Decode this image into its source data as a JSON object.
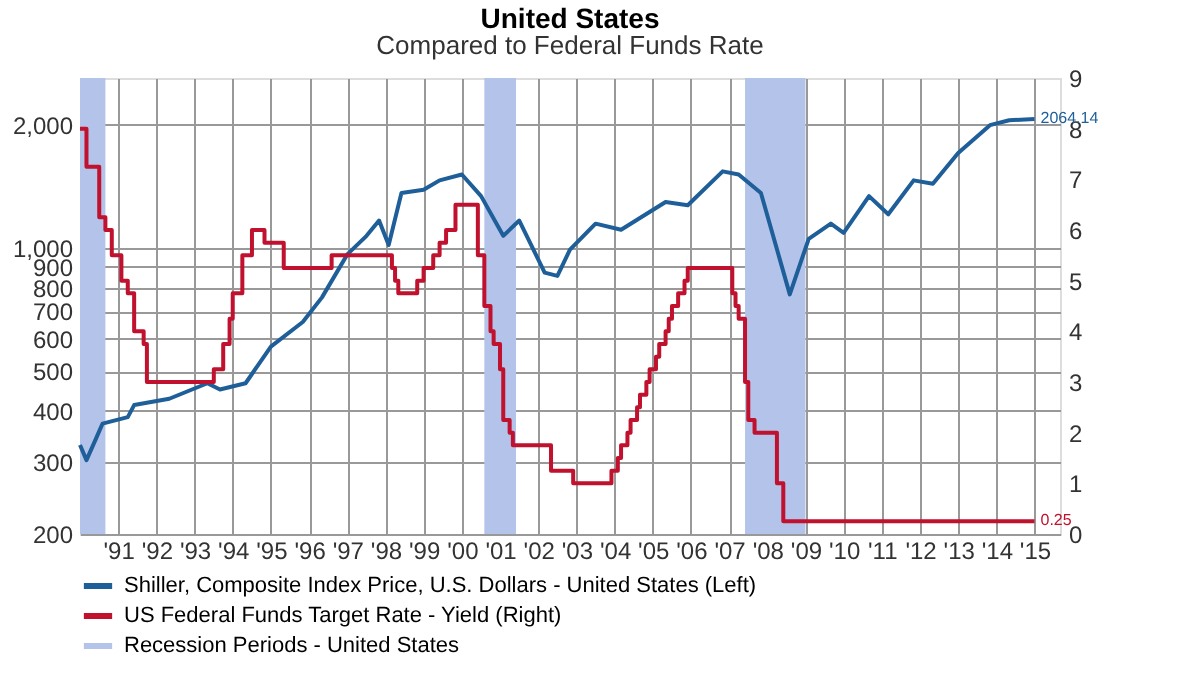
{
  "chart_data": {
    "type": "line",
    "title": "United States",
    "subtitle": "Compared to Federal Funds Rate",
    "xlim": [
      "1990-07",
      "2016-03"
    ],
    "xticks": [
      {
        "value": "1991-07",
        "label": "'91"
      },
      {
        "value": "1992-07",
        "label": "'92"
      },
      {
        "value": "1993-07",
        "label": "'93"
      },
      {
        "value": "1994-07",
        "label": "'94"
      },
      {
        "value": "1995-07",
        "label": "'95"
      },
      {
        "value": "1996-07",
        "label": "'96"
      },
      {
        "value": "1997-07",
        "label": "'97"
      },
      {
        "value": "1998-07",
        "label": "'98"
      },
      {
        "value": "1999-07",
        "label": "'99"
      },
      {
        "value": "2000-07",
        "label": "'00"
      },
      {
        "value": "2001-07",
        "label": "'01"
      },
      {
        "value": "2002-07",
        "label": "'02"
      },
      {
        "value": "2003-07",
        "label": "'03"
      },
      {
        "value": "2004-07",
        "label": "'04"
      },
      {
        "value": "2005-07",
        "label": "'05"
      },
      {
        "value": "2006-07",
        "label": "'06"
      },
      {
        "value": "2007-07",
        "label": "'07"
      },
      {
        "value": "2008-07",
        "label": "'08"
      },
      {
        "value": "2009-07",
        "label": "'09"
      },
      {
        "value": "2010-07",
        "label": "'10"
      },
      {
        "value": "2011-07",
        "label": "'11"
      },
      {
        "value": "2012-07",
        "label": "'12"
      },
      {
        "value": "2013-07",
        "label": "'13"
      },
      {
        "value": "2014-07",
        "label": "'14"
      },
      {
        "value": "2015-07",
        "label": "'15"
      }
    ],
    "ylim": [
      200,
      2600
    ],
    "yticks": [
      200,
      300,
      400,
      500,
      600,
      700,
      800,
      900,
      {
        "value": 1000,
        "label": "1,000"
      },
      {
        "value": 2000,
        "label": "2,000"
      }
    ],
    "y2lim": [
      0,
      9
    ],
    "y2ticks": [
      0,
      1,
      2,
      3,
      4,
      5,
      6,
      7,
      8,
      9
    ],
    "log": "y",
    "grid": true,
    "legend": "bottom",
    "series": [
      {
        "name": "Shiller, Composite Index Price, U.S. Dollars - United States  (Left)",
        "color": "#1f5f99",
        "x": [
          "1990-07",
          "1990-09",
          "1990-12",
          "1991-02",
          "1991-10",
          "1991-12",
          "1992-11",
          "1993-11",
          "1994-03",
          "1994-11",
          "1995-07",
          "1996-05",
          "1996-11",
          "1997-07",
          "1998-01",
          "1998-05",
          "1998-08",
          "1998-12",
          "1999-07",
          "1999-12",
          "2000-07",
          "2001-01",
          "2001-08",
          "2002-01",
          "2002-09",
          "2003-01",
          "2003-05",
          "2004-01",
          "2004-09",
          "2005-11",
          "2006-06",
          "2007-05",
          "2007-10",
          "2008-05",
          "2008-11",
          "2009-02",
          "2009-08",
          "2010-03",
          "2010-07",
          "2011-03",
          "2011-09",
          "2012-05",
          "2012-11",
          "2013-07",
          "2014-05",
          "2014-11",
          "2015-07"
        ],
        "values": [
          330,
          303,
          342,
          372,
          386,
          413,
          428,
          467,
          451,
          467,
          574,
          659,
          757,
          964,
          1070,
          1166,
          1016,
          1362,
          1386,
          1462,
          1511,
          1338,
          1070,
          1166,
          870,
          854,
          990,
          1146,
          1107,
          1294,
          1271,
          1538,
          1511,
          1362,
          931,
          770,
          1052,
          1146,
          1088,
          1338,
          1208,
          1462,
          1435,
          1706,
          1994,
          2050,
          2064.14
        ],
        "value_labels": [
          null,
          null,
          null,
          null,
          null,
          null,
          null,
          null,
          null,
          null,
          null,
          null,
          null,
          null,
          null,
          null,
          null,
          null,
          null,
          null,
          null,
          null,
          null,
          null,
          null,
          null,
          null,
          null,
          null,
          null,
          null,
          null,
          null,
          null,
          null,
          null,
          null,
          null,
          null,
          null,
          null,
          null,
          null,
          null,
          null,
          null,
          "2064.14"
        ]
      },
      {
        "name": "US Federal Funds Target Rate - Yield  (Right)",
        "color": "#c0112e",
        "type": "step",
        "axis": "y2",
        "x": [
          "1990-07",
          "1990-09",
          "1991-01",
          "1991-03",
          "1991-05",
          "1991-08",
          "1991-10",
          "1991-12",
          "1992-03",
          "1992-04",
          "1994-01",
          "1994-04",
          "1994-06",
          "1994-07",
          "1994-10",
          "1995-01",
          "1995-05",
          "1995-11",
          "1997-02",
          "1998-09",
          "1998-10",
          "1998-11",
          "1999-05",
          "1999-07",
          "1999-10",
          "1999-12",
          "2000-02",
          "2000-05",
          "2000-12",
          "2001-02",
          "2001-04",
          "2001-05",
          "2001-07",
          "2001-08",
          "2001-10",
          "2001-11",
          "2002-11",
          "2003-06",
          "2004-06",
          "2004-08",
          "2004-09",
          "2004-11",
          "2004-12",
          "2005-02",
          "2005-03",
          "2005-05",
          "2005-06",
          "2005-08",
          "2005-09",
          "2005-11",
          "2005-12",
          "2006-01",
          "2006-03",
          "2006-05",
          "2006-06",
          "2007-08",
          "2007-09",
          "2007-10",
          "2007-12",
          "2008-01",
          "2008-03",
          "2008-10",
          "2008-12",
          "2015-07"
        ],
        "values": [
          8.0,
          7.25,
          6.25,
          6.0,
          5.5,
          5.0,
          4.75,
          4.0,
          3.75,
          3.0,
          3.25,
          3.75,
          4.25,
          4.75,
          5.5,
          6.0,
          5.75,
          5.25,
          5.5,
          5.25,
          5.0,
          4.75,
          5.0,
          5.25,
          5.5,
          5.75,
          6.0,
          6.5,
          5.5,
          4.5,
          4.0,
          3.75,
          3.25,
          2.25,
          2.0,
          1.75,
          1.25,
          1.0,
          1.25,
          1.5,
          1.75,
          2.0,
          2.25,
          2.5,
          2.75,
          3.0,
          3.25,
          3.5,
          3.75,
          4.0,
          4.25,
          4.5,
          4.75,
          5.0,
          5.25,
          4.75,
          4.5,
          4.25,
          3.0,
          2.25,
          2.0,
          1.0,
          0.25,
          0.25
        ],
        "value_labels": [
          null,
          null,
          null,
          null,
          null,
          null,
          null,
          null,
          null,
          null,
          null,
          null,
          null,
          null,
          null,
          null,
          null,
          null,
          null,
          null,
          null,
          null,
          null,
          null,
          null,
          null,
          null,
          null,
          null,
          null,
          null,
          null,
          null,
          null,
          null,
          null,
          null,
          null,
          null,
          null,
          null,
          null,
          null,
          null,
          null,
          null,
          null,
          null,
          null,
          null,
          null,
          null,
          null,
          null,
          null,
          null,
          null,
          null,
          null,
          null,
          null,
          null,
          null,
          "0.25"
        ]
      }
    ],
    "bands": [
      {
        "axis": "x",
        "from": "1990-07",
        "to": "1991-03",
        "label": "Recession Periods - United States",
        "color": "#b4c3ea"
      },
      {
        "axis": "x",
        "from": "2001-02",
        "to": "2001-12",
        "color": "#b4c3ea"
      },
      {
        "axis": "x",
        "from": "2007-12",
        "to": "2009-07",
        "color": "#b4c3ea"
      }
    ]
  }
}
